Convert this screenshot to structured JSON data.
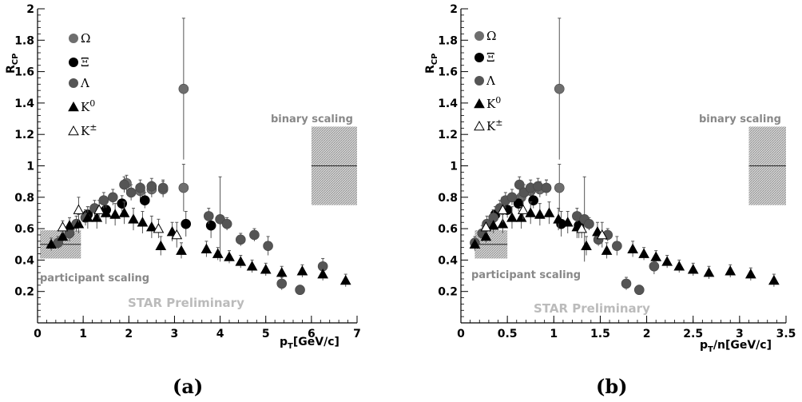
{
  "colors": {
    "omega": "#6e6e6e",
    "xi": "#000000",
    "lambda": "#555555",
    "k0": "#000000",
    "kpm": "#ffffff",
    "band": "#bdbdbd"
  },
  "chart_data": [
    {
      "type": "scatter",
      "panel_label": "(a)",
      "xlabel": "pT[GeV/c]",
      "ylabel": "RCP",
      "xlim": [
        0,
        7
      ],
      "ylim": [
        0,
        2
      ],
      "xticks": [
        "0",
        "1",
        "2",
        "3",
        "4",
        "5",
        "6",
        "7"
      ],
      "yticks": [
        "0.2",
        "0.4",
        "0.6",
        "0.8",
        "1",
        "1.2",
        "1.4",
        "1.6",
        "1.8",
        "2"
      ],
      "annotations": {
        "binary": "binary scaling",
        "participant": "participant scaling",
        "preliminary": "STAR Preliminary"
      },
      "binary_band": {
        "x": [
          6.0,
          7.0
        ],
        "y": [
          0.75,
          1.25
        ],
        "line": 1.0
      },
      "participant_band": {
        "x": [
          0.05,
          0.95
        ],
        "y": [
          0.41,
          0.59
        ],
        "line": 0.5
      },
      "series": [
        {
          "name": "Ω",
          "marker": "circle",
          "fill": "omega",
          "points": [
            [
              1.95,
              0.89,
              0.05
            ],
            [
              2.25,
              0.84,
              0.05
            ],
            [
              2.5,
              0.85,
              0.05
            ],
            [
              2.75,
              0.85,
              0.05
            ],
            [
              3.2,
              1.49,
              0.45
            ],
            [
              3.2,
              0.86,
              0.15
            ]
          ]
        },
        {
          "name": "Ξ",
          "marker": "circle",
          "fill": "xi",
          "points": [
            [
              1.1,
              0.69,
              0.05
            ],
            [
              1.5,
              0.72,
              0.05
            ],
            [
              1.85,
              0.76,
              0.05
            ],
            [
              2.35,
              0.78,
              0.05
            ],
            [
              3.25,
              0.63,
              0.08
            ],
            [
              3.8,
              0.62,
              0.08
            ]
          ]
        },
        {
          "name": "Λ",
          "marker": "circle",
          "fill": "lambda",
          "points": [
            [
              0.45,
              0.51,
              0.04
            ],
            [
              0.7,
              0.57,
              0.05
            ],
            [
              0.85,
              0.63,
              0.05
            ],
            [
              1.05,
              0.67,
              0.05
            ],
            [
              1.25,
              0.73,
              0.05
            ],
            [
              1.45,
              0.78,
              0.05
            ],
            [
              1.65,
              0.8,
              0.05
            ],
            [
              1.9,
              0.88,
              0.05
            ],
            [
              2.05,
              0.83,
              0.05
            ],
            [
              2.25,
              0.86,
              0.05
            ],
            [
              2.5,
              0.87,
              0.05
            ],
            [
              2.75,
              0.86,
              0.05
            ],
            [
              3.75,
              0.68,
              0.05
            ],
            [
              4.0,
              0.66,
              0.27
            ],
            [
              4.15,
              0.63,
              0.04
            ],
            [
              4.45,
              0.53,
              0.04
            ],
            [
              4.75,
              0.56,
              0.04
            ],
            [
              5.05,
              0.49,
              0.06
            ],
            [
              5.35,
              0.25,
              0.04
            ],
            [
              5.75,
              0.21,
              0.03
            ],
            [
              6.25,
              0.36,
              0.05
            ]
          ]
        },
        {
          "name": "K0",
          "marker": "triangle",
          "fill": "k0",
          "points": [
            [
              0.3,
              0.5,
              0.04
            ],
            [
              0.55,
              0.55,
              0.04
            ],
            [
              0.7,
              0.62,
              0.05
            ],
            [
              0.9,
              0.63,
              0.06
            ],
            [
              1.1,
              0.67,
              0.07
            ],
            [
              1.3,
              0.67,
              0.07
            ],
            [
              1.5,
              0.7,
              0.07
            ],
            [
              1.7,
              0.69,
              0.07
            ],
            [
              1.9,
              0.7,
              0.07
            ],
            [
              2.1,
              0.66,
              0.07
            ],
            [
              2.3,
              0.64,
              0.07
            ],
            [
              2.5,
              0.61,
              0.07
            ],
            [
              2.7,
              0.49,
              0.06
            ],
            [
              2.95,
              0.58,
              0.06
            ],
            [
              3.15,
              0.46,
              0.05
            ],
            [
              3.7,
              0.47,
              0.05
            ],
            [
              3.95,
              0.44,
              0.04
            ],
            [
              4.2,
              0.42,
              0.04
            ],
            [
              4.45,
              0.39,
              0.04
            ],
            [
              4.7,
              0.36,
              0.04
            ],
            [
              5.0,
              0.34,
              0.04
            ],
            [
              5.35,
              0.32,
              0.04
            ],
            [
              5.8,
              0.33,
              0.04
            ],
            [
              6.25,
              0.31,
              0.04
            ],
            [
              6.75,
              0.27,
              0.04
            ]
          ]
        },
        {
          "name": "K±",
          "marker": "triangle",
          "fill": "kpm",
          "points": [
            [
              0.55,
              0.61,
              0.04
            ],
            [
              0.9,
              0.72,
              0.08
            ],
            [
              1.35,
              0.72,
              0.06
            ],
            [
              2.65,
              0.6,
              0.06
            ],
            [
              3.05,
              0.56,
              0.08
            ]
          ]
        }
      ]
    },
    {
      "type": "scatter",
      "panel_label": "(b)",
      "xlabel": "pT/n[GeV/c]",
      "ylabel": "RCP",
      "xlim": [
        0,
        3.5
      ],
      "ylim": [
        0,
        2
      ],
      "xticks": [
        "0",
        "0.5",
        "1",
        "1.5",
        "2",
        "2.5",
        "3",
        "3.5"
      ],
      "yticks": [
        "0.2",
        "0.4",
        "0.6",
        "0.8",
        "1",
        "1.2",
        "1.4",
        "1.6",
        "1.8",
        "2"
      ],
      "annotations": {
        "binary": "binary scaling",
        "participant": "participant scaling",
        "preliminary": "STAR Preliminary"
      },
      "binary_band": {
        "x": [
          3.1,
          3.5
        ],
        "y": [
          0.75,
          1.25
        ],
        "line": 1.0
      },
      "participant_band": {
        "x": [
          0.15,
          0.5
        ],
        "y": [
          0.41,
          0.59
        ],
        "line": 0.5
      },
      "series": [
        {
          "name": "Ω",
          "marker": "circle",
          "fill": "omega",
          "points": [
            [
              0.65,
              0.8,
              0.05
            ],
            [
              0.75,
              0.84,
              0.05
            ],
            [
              0.85,
              0.85,
              0.05
            ],
            [
              0.92,
              0.86,
              0.05
            ],
            [
              1.06,
              1.49,
              0.45
            ],
            [
              1.06,
              0.86,
              0.15
            ]
          ]
        },
        {
          "name": "Ξ",
          "marker": "circle",
          "fill": "xi",
          "points": [
            [
              0.37,
              0.69,
              0.05
            ],
            [
              0.5,
              0.72,
              0.05
            ],
            [
              0.62,
              0.76,
              0.05
            ],
            [
              0.78,
              0.78,
              0.05
            ],
            [
              1.08,
              0.63,
              0.08
            ],
            [
              1.27,
              0.62,
              0.08
            ]
          ]
        },
        {
          "name": "Λ",
          "marker": "circle",
          "fill": "lambda",
          "points": [
            [
              0.15,
              0.51,
              0.04
            ],
            [
              0.23,
              0.57,
              0.05
            ],
            [
              0.28,
              0.63,
              0.05
            ],
            [
              0.35,
              0.67,
              0.05
            ],
            [
              0.42,
              0.73,
              0.05
            ],
            [
              0.48,
              0.78,
              0.05
            ],
            [
              0.55,
              0.8,
              0.05
            ],
            [
              0.63,
              0.88,
              0.05
            ],
            [
              0.68,
              0.83,
              0.05
            ],
            [
              0.75,
              0.86,
              0.05
            ],
            [
              0.83,
              0.87,
              0.05
            ],
            [
              0.92,
              0.86,
              0.05
            ],
            [
              1.25,
              0.68,
              0.05
            ],
            [
              1.33,
              0.66,
              0.27
            ],
            [
              1.38,
              0.63,
              0.04
            ],
            [
              1.48,
              0.53,
              0.04
            ],
            [
              1.58,
              0.56,
              0.04
            ],
            [
              1.68,
              0.49,
              0.06
            ],
            [
              1.78,
              0.25,
              0.04
            ],
            [
              1.92,
              0.21,
              0.03
            ],
            [
              2.08,
              0.36,
              0.05
            ]
          ]
        },
        {
          "name": "K0",
          "marker": "triangle",
          "fill": "k0",
          "points": [
            [
              0.15,
              0.5,
              0.04
            ],
            [
              0.27,
              0.55,
              0.04
            ],
            [
              0.35,
              0.62,
              0.05
            ],
            [
              0.45,
              0.63,
              0.06
            ],
            [
              0.55,
              0.67,
              0.07
            ],
            [
              0.65,
              0.67,
              0.07
            ],
            [
              0.75,
              0.7,
              0.07
            ],
            [
              0.85,
              0.69,
              0.07
            ],
            [
              0.95,
              0.7,
              0.07
            ],
            [
              1.05,
              0.66,
              0.07
            ],
            [
              1.15,
              0.64,
              0.07
            ],
            [
              1.25,
              0.61,
              0.07
            ],
            [
              1.35,
              0.49,
              0.06
            ],
            [
              1.47,
              0.58,
              0.06
            ],
            [
              1.57,
              0.46,
              0.05
            ],
            [
              1.85,
              0.47,
              0.05
            ],
            [
              1.97,
              0.44,
              0.04
            ],
            [
              2.1,
              0.42,
              0.04
            ],
            [
              2.22,
              0.39,
              0.04
            ],
            [
              2.35,
              0.36,
              0.04
            ],
            [
              2.5,
              0.34,
              0.04
            ],
            [
              2.67,
              0.32,
              0.04
            ],
            [
              2.9,
              0.33,
              0.04
            ],
            [
              3.12,
              0.31,
              0.04
            ],
            [
              3.37,
              0.27,
              0.04
            ]
          ]
        },
        {
          "name": "K±",
          "marker": "triangle",
          "fill": "kpm",
          "points": [
            [
              0.27,
              0.61,
              0.04
            ],
            [
              0.45,
              0.72,
              0.08
            ],
            [
              0.67,
              0.72,
              0.06
            ],
            [
              1.3,
              0.6,
              0.06
            ],
            [
              1.52,
              0.56,
              0.08
            ]
          ]
        }
      ]
    }
  ]
}
